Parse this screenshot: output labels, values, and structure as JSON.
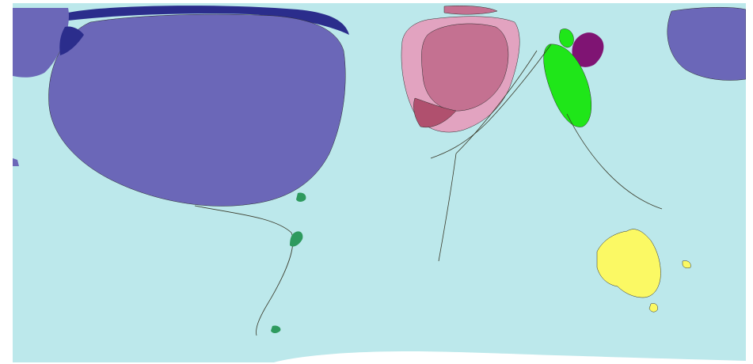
{
  "map": {
    "style": "cartogram",
    "colors": {
      "ocean": "#bce8eb",
      "north_america": "#6b67b8",
      "north_america_dark": "#2b2d8c",
      "europe_light": "#e2a3c0",
      "europe_mid": "#c47191",
      "europe_dark": "#b0506e",
      "middle_east": "#7f1473",
      "asia_green": "#1fe619",
      "south_america": "#2e9a5e",
      "australia": "#fbf964",
      "antarctica": "#ffffff",
      "outline": "#2d2d2d"
    },
    "regions": [
      {
        "name": "north-america"
      },
      {
        "name": "europe"
      },
      {
        "name": "middle-east"
      },
      {
        "name": "east-asia"
      },
      {
        "name": "south-america"
      },
      {
        "name": "africa"
      },
      {
        "name": "australia"
      },
      {
        "name": "antarctica"
      }
    ]
  }
}
